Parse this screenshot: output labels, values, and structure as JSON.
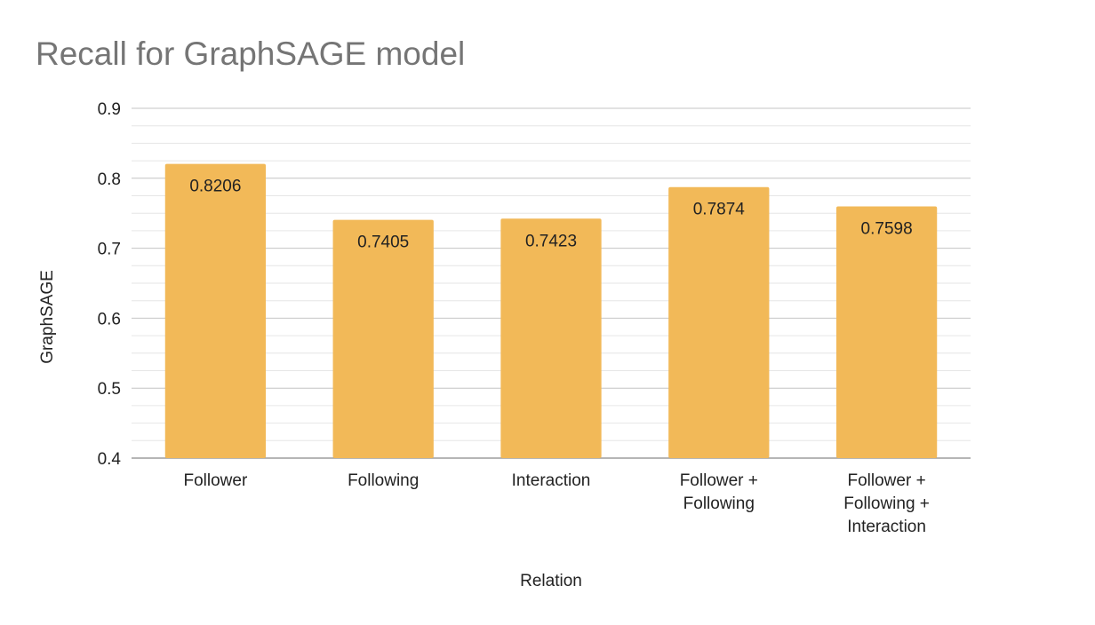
{
  "chart_data": {
    "type": "bar",
    "title": "Recall for GraphSAGE model",
    "xlabel": "Relation",
    "ylabel": "GraphSAGE",
    "categories": [
      [
        "Follower"
      ],
      [
        "Following"
      ],
      [
        "Interaction"
      ],
      [
        "Follower +",
        "Following"
      ],
      [
        "Follower +",
        "Following +",
        "Interaction"
      ]
    ],
    "values": [
      0.8206,
      0.7405,
      0.7423,
      0.7874,
      0.7598
    ],
    "data_labels": [
      "0.8206",
      "0.7405",
      "0.7423",
      "0.7874",
      "0.7598"
    ],
    "yticks": [
      "0.4",
      "0.5",
      "0.6",
      "0.7",
      "0.8",
      "0.9"
    ],
    "ylim": [
      0.4,
      0.9
    ],
    "grid": true,
    "legend": "none",
    "colors": {
      "bar": "#f2b958",
      "major_grid": "#c4c4c4",
      "minor_grid": "#e6e6e6",
      "axis": "#9e9e9e",
      "title": "#757575"
    }
  }
}
